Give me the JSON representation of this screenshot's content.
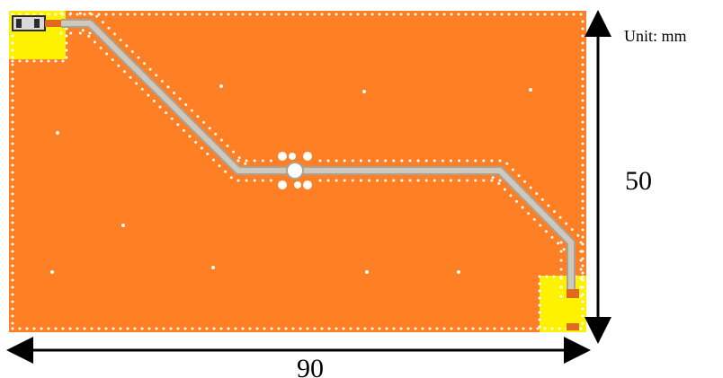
{
  "labels": {
    "unit": "Unit: mm",
    "height": "50",
    "width": "90"
  },
  "colors": {
    "ground_plane": "#FF7F24",
    "pad": "#FFF200",
    "trace": "#BFB8A8",
    "via": "#FFFFFF",
    "dimension_line": "#000000",
    "connector_body": "#D9D9D9",
    "connector_outline": "#2B2B2B",
    "connector_accent": "#E06A1C"
  }
}
